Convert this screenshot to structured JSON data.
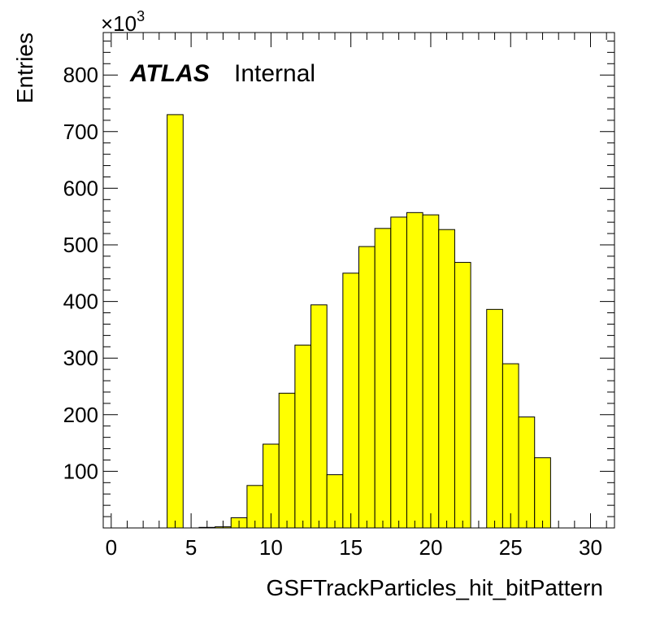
{
  "chart_data": {
    "type": "bar",
    "histogram": true,
    "xlabel": "GSFTrackParticles_hit_bitPattern",
    "ylabel": "Entries",
    "y_multiplier_base": "×10",
    "y_multiplier_exp": "3",
    "xlim": [
      -0.5,
      31.5
    ],
    "ylim": [
      0,
      875
    ],
    "xticks": [
      0,
      5,
      10,
      15,
      20,
      25,
      30
    ],
    "yticks": [
      100,
      200,
      300,
      400,
      500,
      600,
      700,
      800
    ],
    "bin_width": 1,
    "bins": [
      {
        "x": 4,
        "y": 730
      },
      {
        "x": 6,
        "y": 1
      },
      {
        "x": 7,
        "y": 2
      },
      {
        "x": 8,
        "y": 18
      },
      {
        "x": 9,
        "y": 75
      },
      {
        "x": 10,
        "y": 148
      },
      {
        "x": 11,
        "y": 238
      },
      {
        "x": 12,
        "y": 323
      },
      {
        "x": 13,
        "y": 394
      },
      {
        "x": 14,
        "y": 94
      },
      {
        "x": 15,
        "y": 450
      },
      {
        "x": 16,
        "y": 497
      },
      {
        "x": 17,
        "y": 529
      },
      {
        "x": 18,
        "y": 549
      },
      {
        "x": 19,
        "y": 557
      },
      {
        "x": 20,
        "y": 553
      },
      {
        "x": 21,
        "y": 527
      },
      {
        "x": 22,
        "y": 469
      },
      {
        "x": 24,
        "y": 386
      },
      {
        "x": 25,
        "y": 290
      },
      {
        "x": 26,
        "y": 196
      },
      {
        "x": 27,
        "y": 124
      }
    ],
    "fill_color": "#ffff00",
    "line_color": "#000000",
    "label_main": "ATLAS",
    "label_sub": "Internal",
    "label_position": "top-left"
  }
}
